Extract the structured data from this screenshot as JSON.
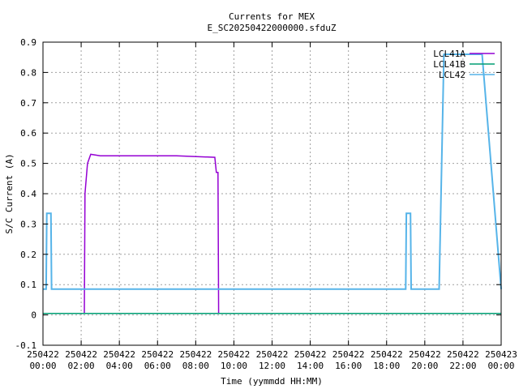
{
  "chart_data": {
    "type": "line",
    "title": "Currents for MEX",
    "subtitle": "E_SC20250422000000.sfduZ",
    "xlabel": "Time (yymmdd HH:MM)",
    "ylabel": "S/C Current (A)",
    "xlim": [
      "250422 00:00",
      "250423 00:00"
    ],
    "ylim": [
      -0.1,
      0.9
    ],
    "grid": true,
    "legend_position": "top-right",
    "x_ticks": [
      {
        "date": "250422",
        "time": "00:00"
      },
      {
        "date": "250422",
        "time": "02:00"
      },
      {
        "date": "250422",
        "time": "04:00"
      },
      {
        "date": "250422",
        "time": "06:00"
      },
      {
        "date": "250422",
        "time": "08:00"
      },
      {
        "date": "250422",
        "time": "10:00"
      },
      {
        "date": "250422",
        "time": "12:00"
      },
      {
        "date": "250422",
        "time": "14:00"
      },
      {
        "date": "250422",
        "time": "16:00"
      },
      {
        "date": "250422",
        "time": "18:00"
      },
      {
        "date": "250422",
        "time": "20:00"
      },
      {
        "date": "250422",
        "time": "22:00"
      },
      {
        "date": "250423",
        "time": "00:00"
      }
    ],
    "y_ticks": [
      "-0.1",
      "0",
      "0.1",
      "0.2",
      "0.3",
      "0.4",
      "0.5",
      "0.6",
      "0.7",
      "0.8",
      "0.9"
    ],
    "series": [
      {
        "name": "LCL41A",
        "color": "#9400d3",
        "x": [
          "250422 00:00",
          "250422 02:10",
          "250422 02:12",
          "250422 02:20",
          "250422 02:30",
          "250422 03:00",
          "250422 05:00",
          "250422 07:00",
          "250422 09:00",
          "250422 09:05",
          "250422 09:10",
          "250422 09:12",
          "250422 12:00",
          "250422 18:00",
          "250423 00:00"
        ],
        "y": [
          0.005,
          0.005,
          0.4,
          0.5,
          0.53,
          0.525,
          0.525,
          0.525,
          0.52,
          0.47,
          0.47,
          0.005,
          0.005,
          0.005,
          0.005
        ]
      },
      {
        "name": "LCL41B",
        "color": "#009e73",
        "x": [
          "250422 00:00",
          "250422 06:00",
          "250422 12:00",
          "250422 18:00",
          "250423 00:00"
        ],
        "y": [
          0.005,
          0.005,
          0.005,
          0.005,
          0.005
        ]
      },
      {
        "name": "LCL42",
        "color": "#56b4e9",
        "x": [
          "250422 00:00",
          "250422 00:10",
          "250422 00:12",
          "250422 00:25",
          "250422 00:27",
          "250422 19:00",
          "250422 19:02",
          "250422 19:15",
          "250422 19:17",
          "250422 20:45",
          "250422 21:00",
          "250422 22:00",
          "250422 23:00",
          "250423 00:00"
        ],
        "y": [
          0.085,
          0.085,
          0.335,
          0.335,
          0.085,
          0.085,
          0.335,
          0.335,
          0.085,
          0.085,
          0.86,
          0.86,
          0.86,
          0.085
        ]
      }
    ]
  }
}
